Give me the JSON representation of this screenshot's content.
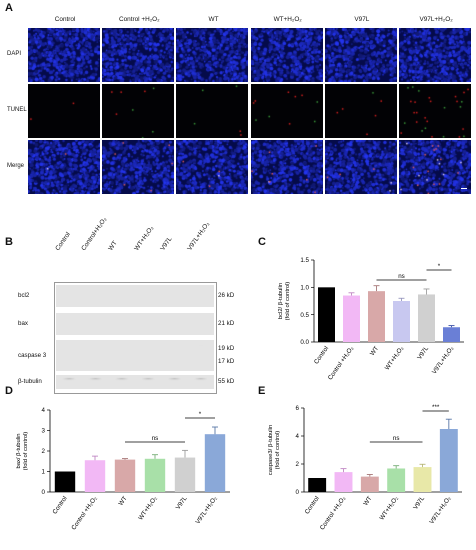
{
  "panels": {
    "A": "A",
    "B": "B",
    "C": "C",
    "D": "D",
    "E": "E"
  },
  "micro": {
    "columns": [
      "Control",
      "Control +H₂O₂",
      "WT",
      "WT+H₂O₂",
      "V97L",
      "V97L+H₂O₂"
    ],
    "rows": [
      "DAPI",
      "TUNEL",
      "Merge"
    ],
    "colors": {
      "dapi": "#1a2aa8",
      "tunel_bg": "#020205",
      "tunel_dot": "#d82020",
      "merge": "#1a2aa8"
    }
  },
  "blot": {
    "columns": [
      "Control",
      "Control+H₂O₂",
      "WT",
      "WT+H₂O₂",
      "V97L",
      "V97L+H₂O₂"
    ],
    "rows": [
      {
        "label": "bcl2",
        "kd": [
          "26 kD"
        ]
      },
      {
        "label": "bax",
        "kd": [
          "21 kD"
        ]
      },
      {
        "label": "caspase 3",
        "kd": [
          "19 kD",
          "17 kD"
        ]
      },
      {
        "label": "β-tubulin",
        "kd": [
          "55 kD"
        ]
      }
    ]
  },
  "chart_data": [
    {
      "id": "C",
      "type": "bar",
      "categories": [
        "Control",
        "Control +H₂O₂",
        "WT",
        "WT+H₂O₂",
        "V97L",
        "V97L+H₂O₂"
      ],
      "values": [
        1.0,
        0.85,
        0.93,
        0.75,
        0.87,
        0.27
      ],
      "errors": [
        0,
        0.05,
        0.1,
        0.05,
        0.1,
        0.03
      ],
      "ylabel": "bcl2/ β-tubulin\n(fold of control)",
      "ylim": [
        0,
        1.5
      ],
      "yticks": [
        "0.0",
        "0.5",
        "1.0",
        "1.5"
      ],
      "colors": [
        "#000000",
        "#f2b8f5",
        "#d8a8a8",
        "#c8c8f0",
        "#d0d0d0",
        "#6a7fd6"
      ],
      "annotations": [
        {
          "text": "ns",
          "from": 2,
          "to": 4
        },
        {
          "text": "*",
          "from": 4,
          "to": 5
        }
      ]
    },
    {
      "id": "D",
      "type": "bar",
      "categories": [
        "Control",
        "Control +H₂O₂",
        "WT",
        "WT+H₂O₂",
        "V97L",
        "V97L+H₂O₂"
      ],
      "values": [
        1.0,
        1.55,
        1.58,
        1.62,
        1.68,
        2.82
      ],
      "errors": [
        0,
        0.2,
        0.05,
        0.2,
        0.35,
        0.35
      ],
      "ylabel": "bax/ β-tubulin\n(fold of control)",
      "ylim": [
        0,
        4
      ],
      "yticks": [
        "0",
        "1",
        "2",
        "3",
        "4"
      ],
      "colors": [
        "#000000",
        "#f2b8f5",
        "#d8a8a8",
        "#a8e0a8",
        "#d0d0d0",
        "#8aa8d8"
      ],
      "annotations": [
        {
          "text": "ns",
          "from": 2,
          "to": 4
        },
        {
          "text": "*",
          "from": 4,
          "to": 5
        }
      ]
    },
    {
      "id": "E",
      "type": "bar",
      "categories": [
        "Control",
        "Control +H₂O₂",
        "WT",
        "WT+H₂O₂",
        "V97L",
        "V97L+H₂O₂"
      ],
      "values": [
        1.0,
        1.42,
        1.1,
        1.68,
        1.78,
        4.5
      ],
      "errors": [
        0,
        0.25,
        0.15,
        0.2,
        0.2,
        0.7
      ],
      "ylabel": "caspase3/ β-tubulin\n(fold of control)",
      "ylim": [
        0,
        6
      ],
      "yticks": [
        "0",
        "2",
        "4",
        "6"
      ],
      "colors": [
        "#000000",
        "#f2b8f5",
        "#d8a8a8",
        "#a8e0a8",
        "#e8e8a8",
        "#8aa8d8"
      ],
      "annotations": [
        {
          "text": "ns",
          "from": 2,
          "to": 4
        },
        {
          "text": "***",
          "from": 4,
          "to": 5
        }
      ]
    }
  ]
}
